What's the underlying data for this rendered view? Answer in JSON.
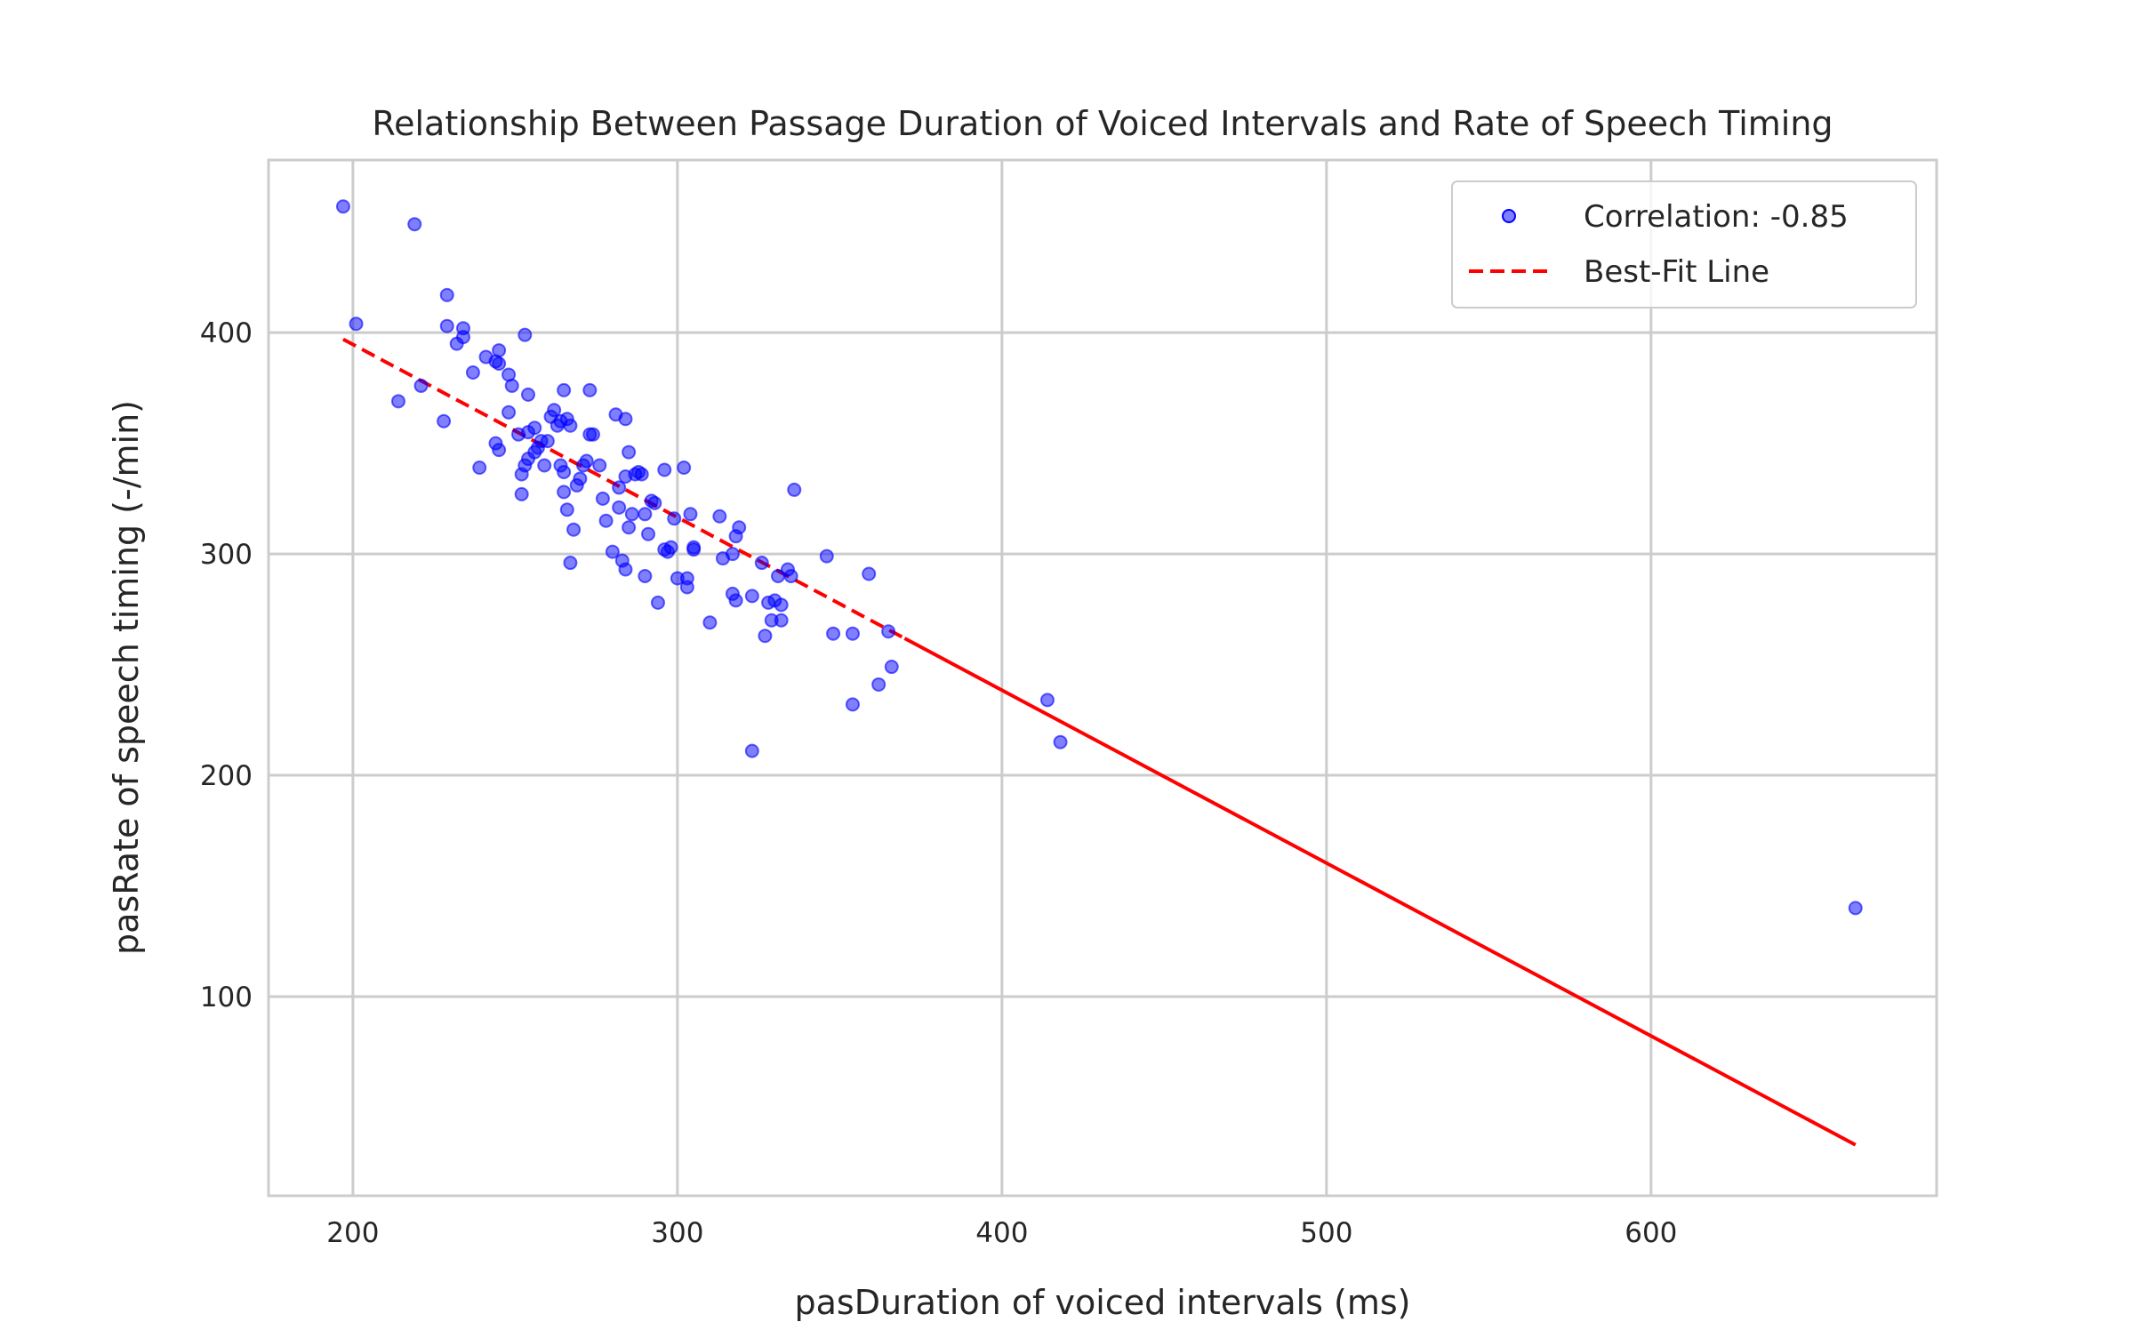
{
  "chart_data": {
    "type": "scatter",
    "title": "Relationship Between Passage Duration of Voiced Intervals and Rate of Speech Timing",
    "xlabel": "pasDuration of voiced intervals (ms)",
    "ylabel": "pasRate of speech timing (-/min)",
    "xlim": [
      174,
      688
    ],
    "ylim": [
      10,
      478
    ],
    "xticks": [
      200,
      300,
      400,
      500,
      600
    ],
    "yticks": [
      100,
      200,
      300,
      400
    ],
    "grid": true,
    "legend_position": "top-right",
    "legend": [
      {
        "label": "Correlation: -0.85",
        "kind": "marker"
      },
      {
        "label": "Best-Fit Line",
        "kind": "line"
      }
    ],
    "colors": {
      "points": "#0000ff",
      "fit_line": "#ff0000",
      "grid": "#cccccc",
      "frame": "#cccccc"
    },
    "fit_line": {
      "x": [
        197,
        663
      ],
      "y": [
        397,
        33
      ],
      "style": "dashed-to-solid"
    },
    "series": [
      {
        "name": "Correlation: -0.85",
        "points": [
          [
            197,
            457
          ],
          [
            219,
            449
          ],
          [
            201,
            404
          ],
          [
            229,
            417
          ],
          [
            229,
            403
          ],
          [
            234,
            402
          ],
          [
            234,
            398
          ],
          [
            232,
            395
          ],
          [
            214,
            369
          ],
          [
            221,
            376
          ],
          [
            228,
            360
          ],
          [
            241,
            389
          ],
          [
            244,
            387
          ],
          [
            245,
            392
          ],
          [
            245,
            386
          ],
          [
            248,
            381
          ],
          [
            249,
            376
          ],
          [
            253,
            399
          ],
          [
            237,
            382
          ],
          [
            239,
            339
          ],
          [
            244,
            350
          ],
          [
            245,
            347
          ],
          [
            248,
            364
          ],
          [
            251,
            354
          ],
          [
            254,
            355
          ],
          [
            256,
            357
          ],
          [
            254,
            372
          ],
          [
            252,
            336
          ],
          [
            253,
            340
          ],
          [
            252,
            327
          ],
          [
            254,
            343
          ],
          [
            256,
            346
          ],
          [
            257,
            348
          ],
          [
            258,
            351
          ],
          [
            259,
            340
          ],
          [
            260,
            351
          ],
          [
            261,
            362
          ],
          [
            262,
            365
          ],
          [
            263,
            358
          ],
          [
            264,
            340
          ],
          [
            264,
            360
          ],
          [
            265,
            337
          ],
          [
            265,
            328
          ],
          [
            265,
            374
          ],
          [
            266,
            361
          ],
          [
            267,
            358
          ],
          [
            266,
            320
          ],
          [
            268,
            311
          ],
          [
            267,
            296
          ],
          [
            269,
            331
          ],
          [
            270,
            334
          ],
          [
            271,
            340
          ],
          [
            272,
            342
          ],
          [
            273,
            354
          ],
          [
            274,
            354
          ],
          [
            273,
            374
          ],
          [
            276,
            340
          ],
          [
            277,
            325
          ],
          [
            278,
            315
          ],
          [
            280,
            301
          ],
          [
            281,
            363
          ],
          [
            282,
            321
          ],
          [
            282,
            330
          ],
          [
            283,
            297
          ],
          [
            284,
            293
          ],
          [
            284,
            361
          ],
          [
            284,
            335
          ],
          [
            285,
            346
          ],
          [
            285,
            312
          ],
          [
            286,
            318
          ],
          [
            287,
            336
          ],
          [
            288,
            337
          ],
          [
            289,
            336
          ],
          [
            290,
            318
          ],
          [
            290,
            290
          ],
          [
            291,
            309
          ],
          [
            292,
            324
          ],
          [
            293,
            323
          ],
          [
            294,
            278
          ],
          [
            296,
            338
          ],
          [
            296,
            302
          ],
          [
            297,
            301
          ],
          [
            298,
            303
          ],
          [
            299,
            316
          ],
          [
            300,
            289
          ],
          [
            302,
            339
          ],
          [
            303,
            289
          ],
          [
            303,
            285
          ],
          [
            304,
            318
          ],
          [
            305,
            302
          ],
          [
            305,
            303
          ],
          [
            310,
            269
          ],
          [
            313,
            317
          ],
          [
            314,
            298
          ],
          [
            317,
            300
          ],
          [
            317,
            282
          ],
          [
            318,
            279
          ],
          [
            318,
            308
          ],
          [
            319,
            312
          ],
          [
            323,
            211
          ],
          [
            323,
            281
          ],
          [
            326,
            296
          ],
          [
            327,
            263
          ],
          [
            328,
            278
          ],
          [
            329,
            270
          ],
          [
            330,
            279
          ],
          [
            331,
            290
          ],
          [
            332,
            277
          ],
          [
            332,
            270
          ],
          [
            334,
            293
          ],
          [
            335,
            290
          ],
          [
            336,
            329
          ],
          [
            346,
            299
          ],
          [
            348,
            264
          ],
          [
            354,
            232
          ],
          [
            354,
            264
          ],
          [
            359,
            291
          ],
          [
            362,
            241
          ],
          [
            365,
            265
          ],
          [
            366,
            249
          ],
          [
            414,
            234
          ],
          [
            418,
            215
          ],
          [
            663,
            140
          ]
        ]
      }
    ]
  }
}
